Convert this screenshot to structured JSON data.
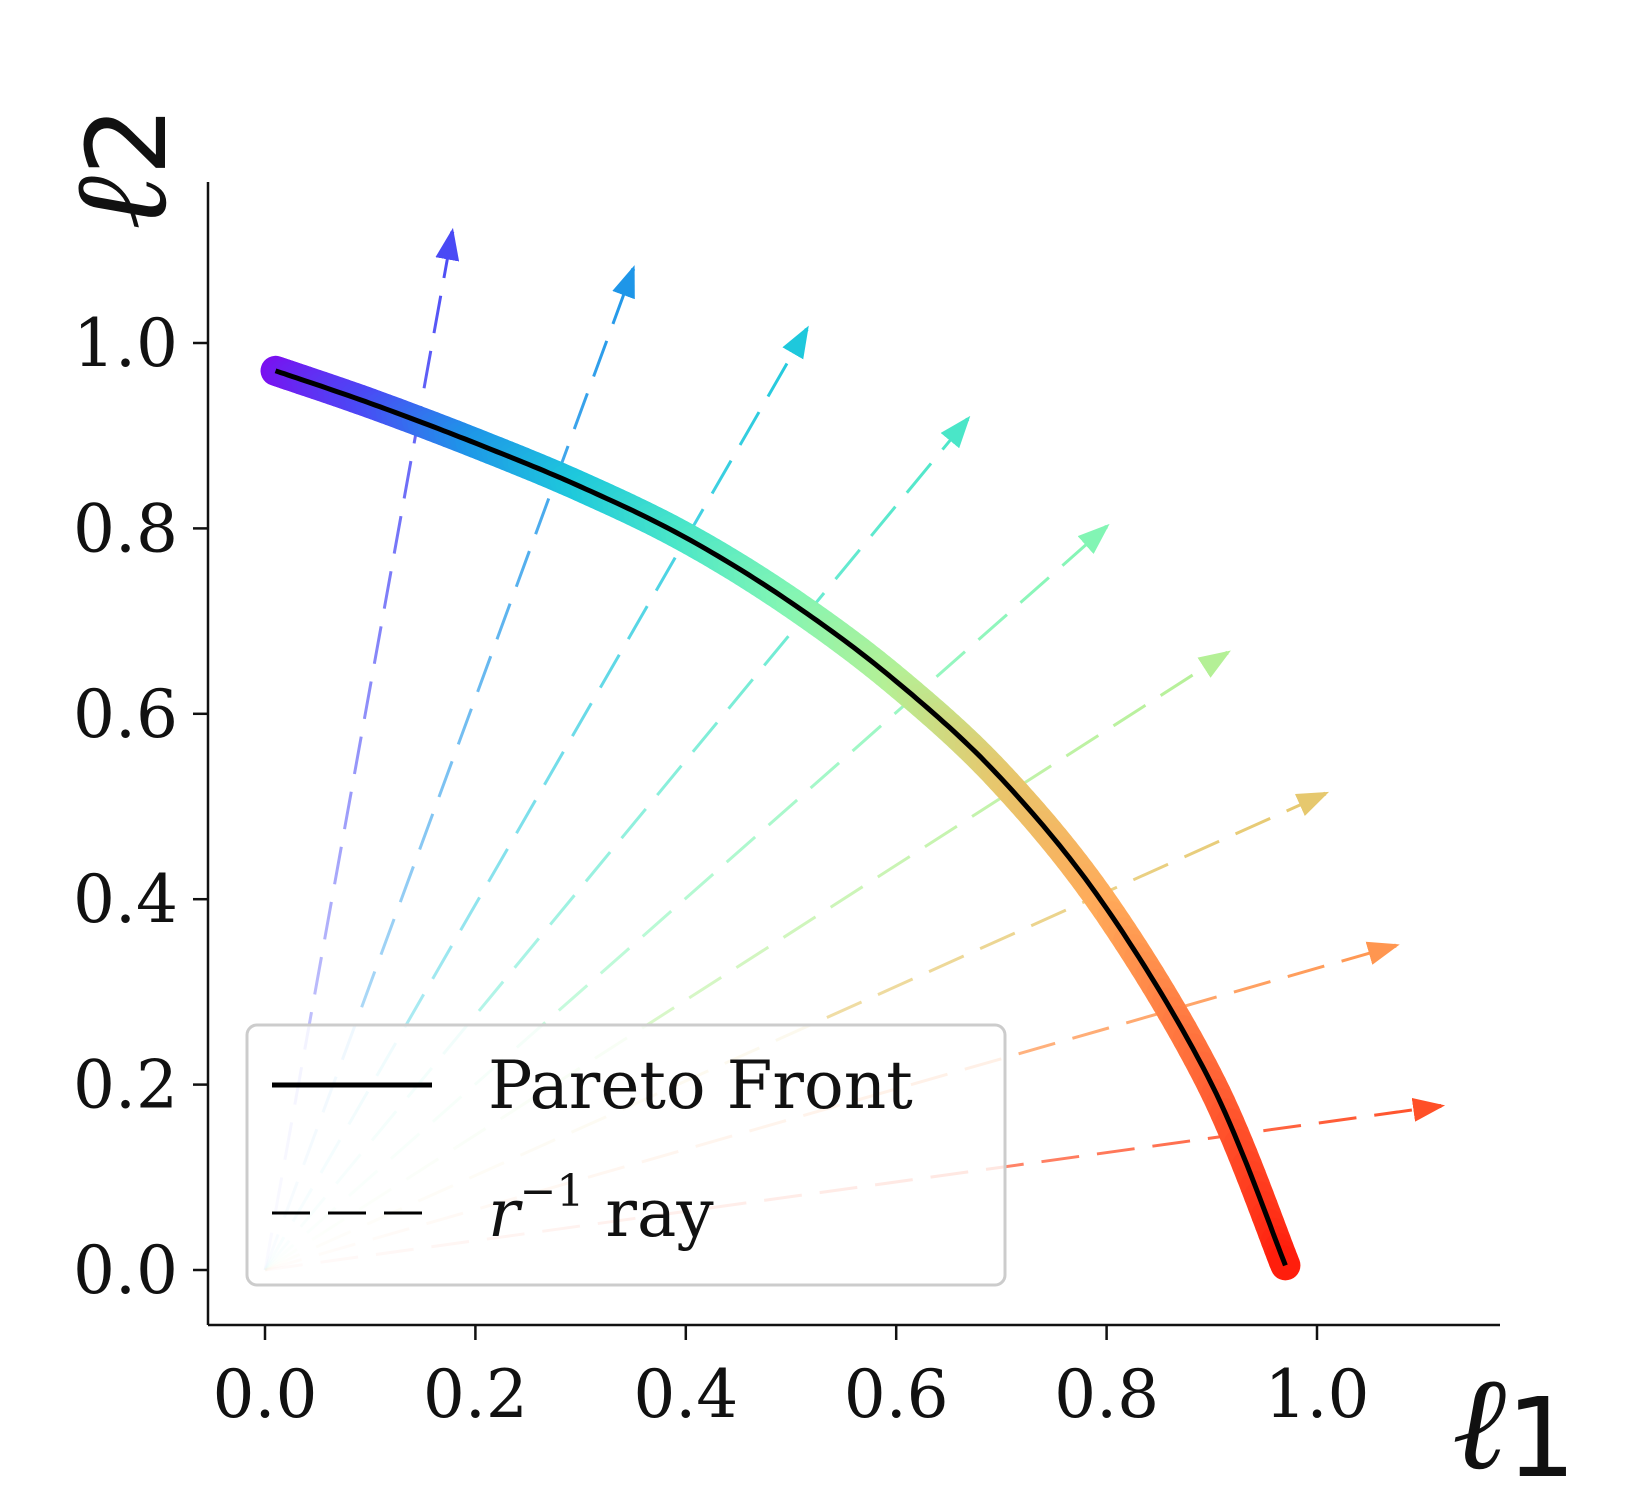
{
  "chart_data": {
    "type": "line",
    "xlabel": "ℓ",
    "xlabel_sub": "1",
    "ylabel": "ℓ",
    "ylabel_sub": "2",
    "xlim": [
      -0.05,
      1.17
    ],
    "ylim": [
      -0.06,
      1.17
    ],
    "xticks": [
      "0.0",
      "0.2",
      "0.4",
      "0.6",
      "0.8",
      "1.0"
    ],
    "yticks": [
      "0.0",
      "0.2",
      "0.4",
      "0.6",
      "0.8",
      "1.0"
    ],
    "grid": false,
    "legend_position": "lower-left",
    "legend": [
      {
        "label": "Pareto Front",
        "style": "solid",
        "color": "#000000"
      },
      {
        "label": "r",
        "superscript": "−1",
        "suffix": " ray",
        "style": "dashed",
        "color": "#000000"
      }
    ],
    "series": [
      {
        "name": "Pareto Front",
        "style": "solid",
        "x": [
          0.01,
          0.1,
          0.2,
          0.3,
          0.4,
          0.5,
          0.6,
          0.7,
          0.8,
          0.9,
          0.97
        ],
        "y": [
          0.97,
          0.935,
          0.892,
          0.845,
          0.79,
          0.72,
          0.635,
          0.53,
          0.39,
          0.2,
          0.005
        ]
      }
    ],
    "rays": [
      {
        "x": 0.178,
        "y": 1.12,
        "color": "#4a4af5"
      },
      {
        "x": 0.35,
        "y": 1.08,
        "color": "#1e96e8"
      },
      {
        "x": 0.515,
        "y": 1.015,
        "color": "#1ec8dc"
      },
      {
        "x": 0.668,
        "y": 0.918,
        "color": "#4ae6c8"
      },
      {
        "x": 0.8,
        "y": 0.802,
        "color": "#82f5b4"
      },
      {
        "x": 0.915,
        "y": 0.666,
        "color": "#b4f096"
      },
      {
        "x": 1.008,
        "y": 0.514,
        "color": "#e6c86e"
      },
      {
        "x": 1.075,
        "y": 0.35,
        "color": "#ff9650"
      },
      {
        "x": 1.118,
        "y": 0.177,
        "color": "#ff5028"
      }
    ]
  }
}
